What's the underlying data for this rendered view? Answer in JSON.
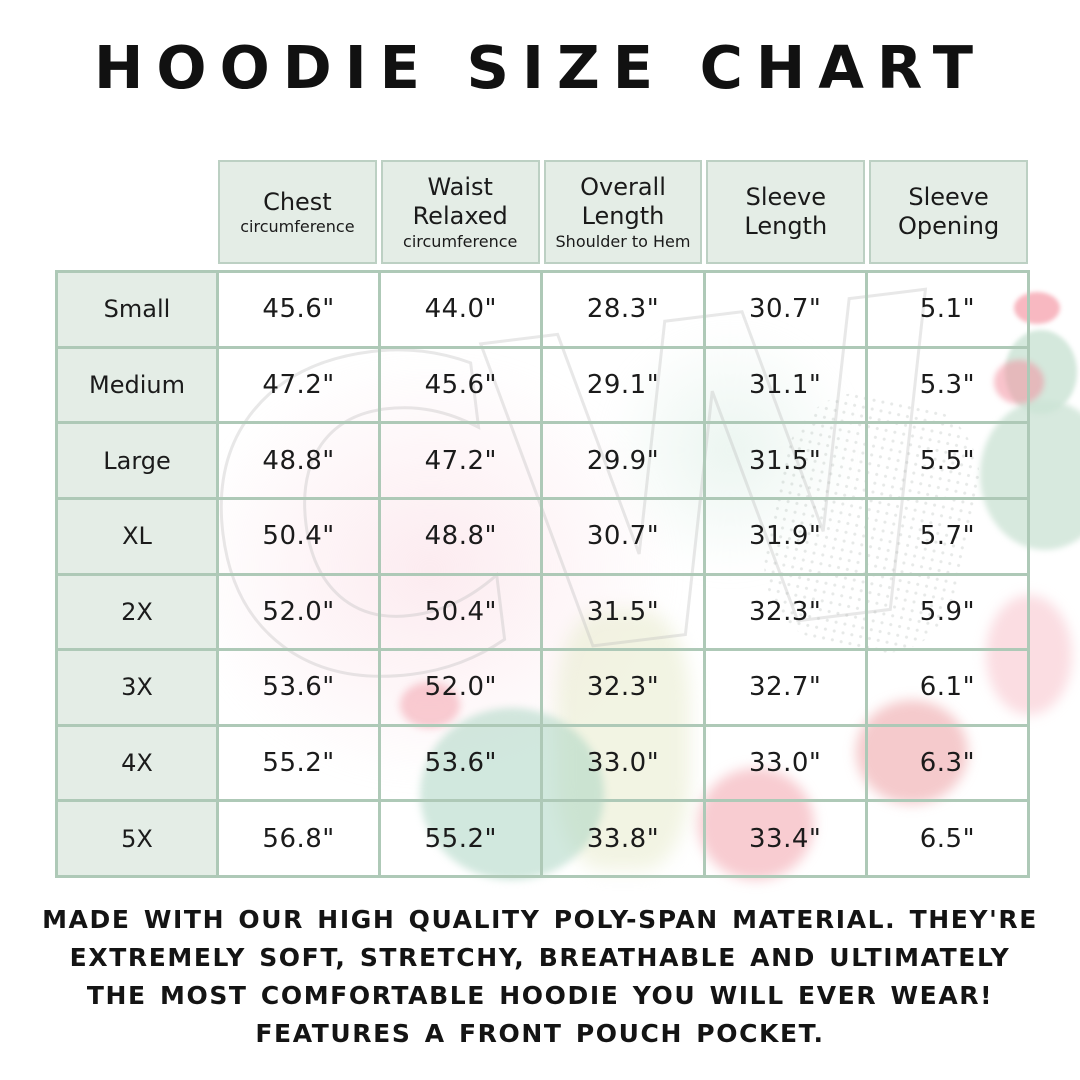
{
  "title": "HOODIE SIZE CHART",
  "watermark_text": "CW",
  "table": {
    "columns": [
      {
        "label": "Chest",
        "sub": "circumference"
      },
      {
        "label": "Waist Relaxed",
        "sub": "circumference"
      },
      {
        "label": "Overall Length",
        "sub": "Shoulder to Hem"
      },
      {
        "label": "Sleeve Length",
        "sub": ""
      },
      {
        "label": "Sleeve Opening",
        "sub": ""
      }
    ],
    "rows": [
      {
        "size": "Small",
        "values": [
          "45.6\"",
          "44.0\"",
          "28.3\"",
          "30.7\"",
          "5.1\""
        ]
      },
      {
        "size": "Medium",
        "values": [
          "47.2\"",
          "45.6\"",
          "29.1\"",
          "31.1\"",
          "5.3\""
        ]
      },
      {
        "size": "Large",
        "values": [
          "48.8\"",
          "47.2\"",
          "29.9\"",
          "31.5\"",
          "5.5\""
        ]
      },
      {
        "size": "XL",
        "values": [
          "50.4\"",
          "48.8\"",
          "30.7\"",
          "31.9\"",
          "5.7\""
        ]
      },
      {
        "size": "2X",
        "values": [
          "52.0\"",
          "50.4\"",
          "31.5\"",
          "32.3\"",
          "5.9\""
        ]
      },
      {
        "size": "3X",
        "values": [
          "53.6\"",
          "52.0\"",
          "32.3\"",
          "32.7\"",
          "6.1\""
        ]
      },
      {
        "size": "4X",
        "values": [
          "55.2\"",
          "53.6\"",
          "33.0\"",
          "33.0\"",
          "6.3\""
        ]
      },
      {
        "size": "5X",
        "values": [
          "56.8\"",
          "55.2\"",
          "33.8\"",
          "33.4\"",
          "6.5\""
        ]
      }
    ]
  },
  "footer": {
    "lines": [
      "MADE WITH OUR HIGH QUALITY POLY-SPAN MATERIAL. THEY'RE",
      "EXTREMELY SOFT, STRETCHY, BREATHABLE AND ULTIMATELY",
      "THE MOST COMFORTABLE HOODIE YOU WILL EVER WEAR!",
      "FEATURES A FRONT POUCH POCKET."
    ]
  },
  "colors": {
    "header_cell_bg": "#e4ede6",
    "size_cell_bg": "#e4ede6",
    "grid_line": "#aec9b7",
    "header_border": "#bcd0c3",
    "text": "#1a1a1a",
    "page_bg": "#ffffff"
  },
  "chart_data": {
    "type": "table",
    "title": "HOODIE SIZE CHART",
    "columns": [
      "Size",
      "Chest circumference",
      "Waist Relaxed circumference",
      "Overall Length Shoulder to Hem",
      "Sleeve Length",
      "Sleeve Opening"
    ],
    "rows": [
      [
        "Small",
        "45.6\"",
        "44.0\"",
        "28.3\"",
        "30.7\"",
        "5.1\""
      ],
      [
        "Medium",
        "47.2\"",
        "45.6\"",
        "29.1\"",
        "31.1\"",
        "5.3\""
      ],
      [
        "Large",
        "48.8\"",
        "47.2\"",
        "29.9\"",
        "31.5\"",
        "5.5\""
      ],
      [
        "XL",
        "50.4\"",
        "48.8\"",
        "30.7\"",
        "31.9\"",
        "5.7\""
      ],
      [
        "2X",
        "52.0\"",
        "50.4\"",
        "31.5\"",
        "32.3\"",
        "5.9\""
      ],
      [
        "3X",
        "53.6\"",
        "52.0\"",
        "32.3\"",
        "32.7\"",
        "6.1\""
      ],
      [
        "4X",
        "55.2\"",
        "53.6\"",
        "33.0\"",
        "33.0\"",
        "6.3\""
      ],
      [
        "5X",
        "56.8\"",
        "55.2\"",
        "33.8\"",
        "33.4\"",
        "6.5\""
      ]
    ],
    "notes": "MADE WITH OUR HIGH QUALITY POLY-SPAN MATERIAL. THEY'RE EXTREMELY SOFT, STRETCHY, BREATHABLE AND ULTIMATELY THE MOST COMFORTABLE HOODIE YOU WILL EVER WEAR! FEATURES A FRONT POUCH POCKET."
  }
}
